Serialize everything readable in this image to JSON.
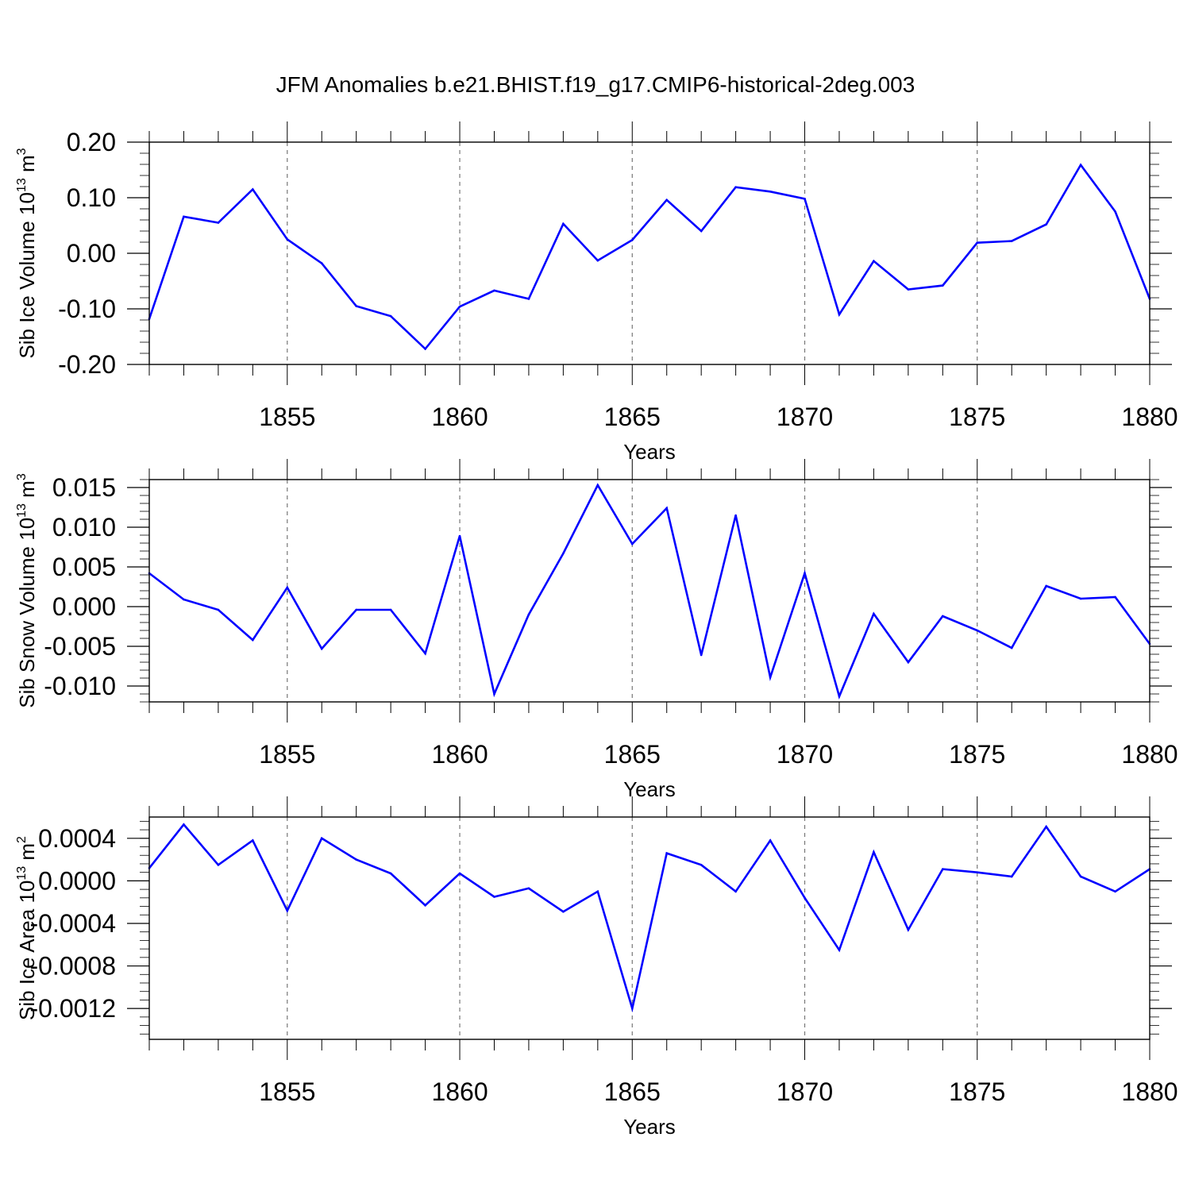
{
  "title": "JFM Anomalies b.e21.BHIST.f19_g17.CMIP6-historical-2deg.003",
  "colors": {
    "line": "#0000ff",
    "frame": "#000000",
    "grid": "#777777"
  },
  "chart_data": [
    {
      "type": "line",
      "ylabel": "Sib Ice Volume 10",
      "ylabel_exp": "13",
      "ylabel_unit": "m",
      "ylabel_unit_exp": "3",
      "xlabel": "Years",
      "x": [
        1851,
        1852,
        1853,
        1854,
        1855,
        1856,
        1857,
        1858,
        1859,
        1860,
        1861,
        1862,
        1863,
        1864,
        1865,
        1866,
        1867,
        1868,
        1869,
        1870,
        1871,
        1872,
        1873,
        1874,
        1875,
        1876,
        1877,
        1878,
        1879,
        1880
      ],
      "values": [
        -0.118,
        0.066,
        0.055,
        0.115,
        0.025,
        -0.018,
        -0.095,
        -0.113,
        -0.172,
        -0.096,
        -0.067,
        -0.082,
        0.053,
        -0.013,
        0.024,
        0.096,
        0.04,
        0.119,
        0.111,
        0.098,
        -0.11,
        -0.014,
        -0.065,
        -0.058,
        0.019,
        0.022,
        0.052,
        0.159,
        0.075,
        -0.082
      ],
      "xlim": [
        1851,
        1880
      ],
      "ylim": [
        -0.2,
        0.2
      ],
      "xticks": [
        "1855",
        "1860",
        "1865",
        "1870",
        "1875",
        "1880"
      ],
      "yticks": [
        "-0.20",
        "-0.10",
        "0.00",
        "0.10",
        "0.20"
      ],
      "grid": "vertical dashed"
    },
    {
      "type": "line",
      "ylabel": "Sib Snow Volume 10",
      "ylabel_exp": "13",
      "ylabel_unit": "m",
      "ylabel_unit_exp": "3",
      "xlabel": "Years",
      "x": [
        1851,
        1852,
        1853,
        1854,
        1855,
        1856,
        1857,
        1858,
        1859,
        1860,
        1861,
        1862,
        1863,
        1864,
        1865,
        1866,
        1867,
        1868,
        1869,
        1870,
        1871,
        1872,
        1873,
        1874,
        1875,
        1876,
        1877,
        1878,
        1879,
        1880
      ],
      "values": [
        0.0042,
        0.0009,
        -0.0004,
        -0.0042,
        0.0024,
        -0.0053,
        -0.0004,
        -0.0004,
        -0.0059,
        0.0089,
        -0.011,
        -0.001,
        0.0067,
        0.0153,
        0.0079,
        0.0124,
        -0.0061,
        0.0115,
        -0.0089,
        0.0042,
        -0.0113,
        -0.0009,
        -0.007,
        -0.0012,
        -0.003,
        -0.0052,
        0.0026,
        0.001,
        0.0012,
        -0.0047
      ],
      "xlim": [
        1851,
        1880
      ],
      "ylim": [
        -0.012,
        0.016
      ],
      "xticks": [
        "1855",
        "1860",
        "1865",
        "1870",
        "1875",
        "1880"
      ],
      "yticks": [
        "-0.010",
        "-0.005",
        "0.000",
        "0.005",
        "0.010",
        "0.015"
      ],
      "grid": "vertical dashed"
    },
    {
      "type": "line",
      "ylabel": "Sib Ice Area 10",
      "ylabel_exp": "13",
      "ylabel_unit": "m",
      "ylabel_unit_exp": "2",
      "xlabel": "Years",
      "x": [
        1851,
        1852,
        1853,
        1854,
        1855,
        1856,
        1857,
        1858,
        1859,
        1860,
        1861,
        1862,
        1863,
        1864,
        1865,
        1866,
        1867,
        1868,
        1869,
        1870,
        1871,
        1872,
        1873,
        1874,
        1875,
        1876,
        1877,
        1878,
        1879,
        1880
      ],
      "values": [
        0.00012,
        0.00053,
        0.00015,
        0.00038,
        -0.00028,
        0.0004,
        0.0002,
        7e-05,
        -0.00023,
        7e-05,
        -0.00015,
        -7e-05,
        -0.00029,
        -0.0001,
        -0.0012,
        0.00026,
        0.00015,
        -0.0001,
        0.00038,
        -0.00016,
        -0.00065,
        0.00027,
        -0.00046,
        0.00011,
        8e-05,
        4e-05,
        0.00051,
        4e-05,
        -0.0001,
        0.00011
      ],
      "xlim": [
        1851,
        1880
      ],
      "ylim": [
        -0.00149,
        0.0006
      ],
      "xticks": [
        "1855",
        "1860",
        "1865",
        "1870",
        "1875",
        "1880"
      ],
      "yticks": [
        "-0.0012",
        "-0.0008",
        "-0.0004",
        "0.0000",
        "0.0004"
      ],
      "grid": "vertical dashed"
    }
  ]
}
